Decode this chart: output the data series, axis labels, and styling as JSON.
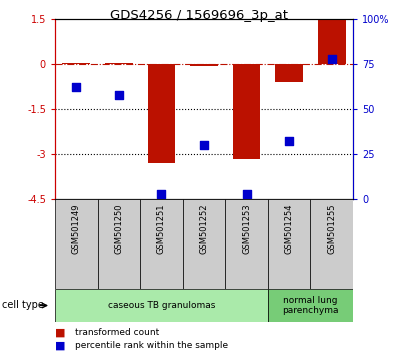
{
  "title": "GDS4256 / 1569696_3p_at",
  "samples": [
    "GSM501249",
    "GSM501250",
    "GSM501251",
    "GSM501252",
    "GSM501253",
    "GSM501254",
    "GSM501255"
  ],
  "red_bars": [
    0.05,
    0.05,
    -3.3,
    -0.05,
    -3.15,
    -0.6,
    1.5
  ],
  "blue_dots": [
    62,
    58,
    3,
    30,
    3,
    32,
    78
  ],
  "ylim_left": [
    -4.5,
    1.5
  ],
  "ylim_right": [
    0,
    100
  ],
  "yticks_left": [
    1.5,
    0,
    -1.5,
    -3,
    -4.5
  ],
  "yticks_right": [
    100,
    75,
    50,
    25,
    0
  ],
  "ytick_labels_left": [
    "1.5",
    "0",
    "-1.5",
    "-3",
    "-4.5"
  ],
  "ytick_labels_right": [
    "100%",
    "75",
    "50",
    "25",
    "0"
  ],
  "hline_y": 0,
  "dotted_lines": [
    -1.5,
    -3
  ],
  "cell_groups": [
    {
      "label": "caseous TB granulomas",
      "indices": [
        0,
        1,
        2,
        3,
        4
      ],
      "color": "#aaeaaa"
    },
    {
      "label": "normal lung\nparenchyma",
      "indices": [
        5,
        6
      ],
      "color": "#77cc77"
    }
  ],
  "bar_color": "#bb1100",
  "dot_color": "#0000cc",
  "bar_width": 0.65,
  "dot_size": 35,
  "plot_bg": "#ffffff",
  "left_axis_color": "#cc0000",
  "right_axis_color": "#0000cc",
  "sample_box_color": "#cccccc",
  "legend_items": [
    {
      "label": "transformed count",
      "color": "#bb1100"
    },
    {
      "label": "percentile rank within the sample",
      "color": "#0000cc"
    }
  ]
}
